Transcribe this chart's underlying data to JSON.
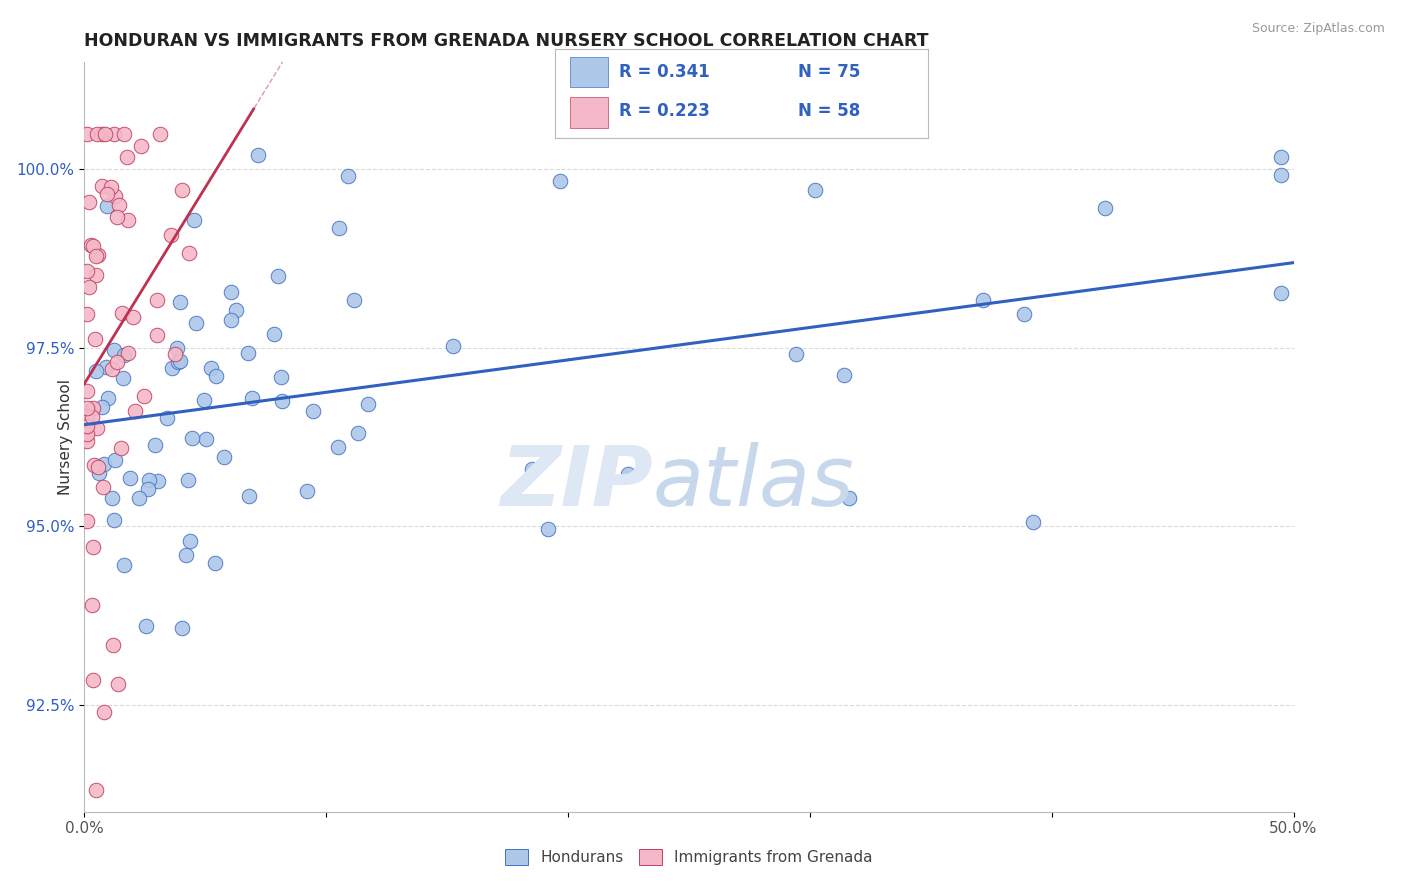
{
  "title": "HONDURAN VS IMMIGRANTS FROM GRENADA NURSERY SCHOOL CORRELATION CHART",
  "source": "Source: ZipAtlas.com",
  "ylabel": "Nursery School",
  "xlim": [
    0.0,
    50.0
  ],
  "ylim": [
    91.0,
    101.5
  ],
  "yticks": [
    92.5,
    95.0,
    97.5,
    100.0
  ],
  "yticklabels": [
    "92.5%",
    "95.0%",
    "97.5%",
    "100.0%"
  ],
  "R_blue": 0.341,
  "N_blue": 75,
  "R_pink": 0.223,
  "N_pink": 58,
  "legend_label1": "Hondurans",
  "legend_label2": "Immigrants from Grenada",
  "blue_fill": "#adc8e8",
  "blue_edge": "#4472c4",
  "pink_fill": "#f4b8c8",
  "pink_edge": "#c04060",
  "blue_line": "#3060c0",
  "pink_line": "#c03050",
  "text_blue": "#3060c0",
  "title_color": "#222222",
  "grid_color": "#cccccc",
  "watermark_zip": "#dde8f0",
  "watermark_atlas": "#c8d8e8"
}
